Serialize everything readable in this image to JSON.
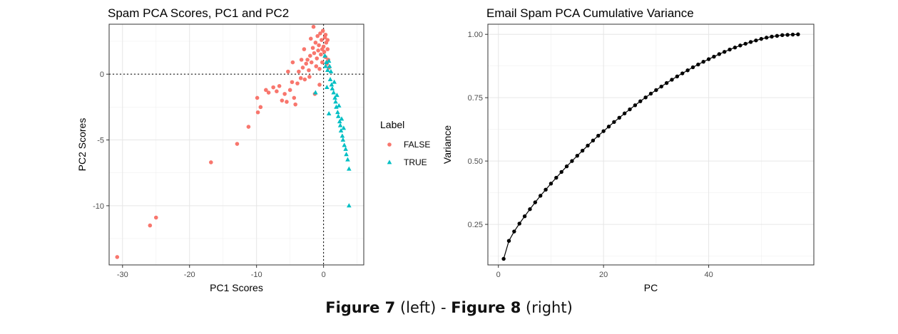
{
  "chart_data": [
    {
      "type": "scatter",
      "title": "Spam PCA Scores, PC1 and PC2",
      "xlabel": "PC1 Scores",
      "ylabel": "PC2 Scores",
      "xlim": [
        -32,
        6
      ],
      "ylim": [
        -14.5,
        3.8
      ],
      "xticks": [
        -30,
        -20,
        -10,
        0
      ],
      "xtick_labels": [
        "-30",
        "-20",
        "-10",
        "0"
      ],
      "yticks": [
        0,
        -5,
        -10
      ],
      "ytick_labels": [
        "0",
        "-5",
        "-10"
      ],
      "grid": true,
      "reference_lines": {
        "x": 0,
        "y": 0,
        "style": "dotted"
      },
      "legend": {
        "title": "Label",
        "position": "right",
        "entries": [
          {
            "label": "FALSE",
            "color": "#F8766D",
            "shape": "circle"
          },
          {
            "label": "TRUE",
            "color": "#00BFC4",
            "shape": "triangle"
          }
        ]
      },
      "series": [
        {
          "name": "FALSE",
          "color": "#F8766D",
          "shape": "circle",
          "points": [
            [
              -30.8,
              -13.9
            ],
            [
              -25.9,
              -11.5
            ],
            [
              -25.0,
              -10.9
            ],
            [
              -16.8,
              -6.7
            ],
            [
              -12.9,
              -5.3
            ],
            [
              -11.2,
              -4.0
            ],
            [
              -9.8,
              -2.9
            ],
            [
              -9.4,
              -2.5
            ],
            [
              -9.9,
              -1.8
            ],
            [
              -8.6,
              -1.2
            ],
            [
              -8.2,
              -1.4
            ],
            [
              -7.5,
              -1.0
            ],
            [
              -7.0,
              -1.3
            ],
            [
              -6.6,
              -0.9
            ],
            [
              -6.2,
              -2.0
            ],
            [
              -5.8,
              -1.5
            ],
            [
              -5.5,
              -2.1
            ],
            [
              -5.0,
              -1.2
            ],
            [
              -4.7,
              -0.6
            ],
            [
              -4.4,
              -1.8
            ],
            [
              -4.2,
              -2.3
            ],
            [
              -3.9,
              -0.7
            ],
            [
              -3.7,
              0.2
            ],
            [
              -3.4,
              -0.3
            ],
            [
              -3.1,
              0.5
            ],
            [
              -2.8,
              -0.4
            ],
            [
              -2.6,
              0.8
            ],
            [
              -2.4,
              1.1
            ],
            [
              -2.2,
              0.3
            ],
            [
              -2.0,
              1.4
            ],
            [
              -1.8,
              0.9
            ],
            [
              -1.6,
              2.0
            ],
            [
              -1.4,
              1.6
            ],
            [
              -1.2,
              2.4
            ],
            [
              -1.1,
              0.6
            ],
            [
              -1.0,
              1.2
            ],
            [
              -0.9,
              2.9
            ],
            [
              -0.8,
              1.8
            ],
            [
              -0.7,
              2.2
            ],
            [
              -0.6,
              0.4
            ],
            [
              -0.5,
              3.1
            ],
            [
              -0.4,
              1.5
            ],
            [
              -0.3,
              2.6
            ],
            [
              -0.2,
              0.9
            ],
            [
              -0.1,
              3.3
            ],
            [
              0.0,
              2.1
            ],
            [
              0.1,
              1.7
            ],
            [
              0.2,
              2.8
            ],
            [
              0.3,
              1.3
            ],
            [
              0.4,
              2.4
            ],
            [
              0.5,
              0.8
            ],
            [
              0.6,
              1.9
            ],
            [
              0.7,
              1.1
            ],
            [
              0.8,
              0.5
            ],
            [
              -1.5,
              3.6
            ],
            [
              -1.9,
              2.7
            ],
            [
              -2.9,
              1.9
            ],
            [
              -3.3,
              1.1
            ],
            [
              -4.6,
              0.9
            ],
            [
              -5.3,
              0.2
            ],
            [
              -1.3,
              -1.5
            ],
            [
              -0.6,
              -0.8
            ],
            [
              -2.1,
              -0.2
            ],
            [
              0.3,
              3.0
            ],
            [
              0.6,
              2.6
            ],
            [
              -0.2,
              1.9
            ]
          ]
        },
        {
          "name": "TRUE",
          "color": "#00BFC4",
          "shape": "triangle",
          "points": [
            [
              0.2,
              1.4
            ],
            [
              0.4,
              0.9
            ],
            [
              0.6,
              0.3
            ],
            [
              0.8,
              1.0
            ],
            [
              0.9,
              0.6
            ],
            [
              1.0,
              -0.4
            ],
            [
              1.2,
              -0.8
            ],
            [
              1.3,
              -1.1
            ],
            [
              1.5,
              -1.4
            ],
            [
              1.6,
              -0.6
            ],
            [
              1.7,
              -1.8
            ],
            [
              1.8,
              -2.1
            ],
            [
              1.9,
              -2.5
            ],
            [
              2.0,
              -1.6
            ],
            [
              2.1,
              -2.9
            ],
            [
              2.2,
              -3.2
            ],
            [
              2.3,
              -2.4
            ],
            [
              2.4,
              -3.6
            ],
            [
              2.5,
              -3.9
            ],
            [
              2.6,
              -4.3
            ],
            [
              2.7,
              -3.4
            ],
            [
              2.8,
              -4.7
            ],
            [
              2.9,
              -5.0
            ],
            [
              3.0,
              -4.1
            ],
            [
              3.1,
              -5.4
            ],
            [
              3.3,
              -5.7
            ],
            [
              3.4,
              -6.1
            ],
            [
              3.6,
              -6.5
            ],
            [
              3.8,
              -7.2
            ],
            [
              3.8,
              -10.0
            ],
            [
              -1.2,
              -1.4
            ],
            [
              0.8,
              -3.0
            ],
            [
              0.5,
              -1.0
            ],
            [
              1.1,
              0.2
            ],
            [
              0.3,
              0.6
            ]
          ]
        }
      ]
    },
    {
      "type": "line",
      "title": "Email Spam PCA Cumulative Variance",
      "xlabel": "PC",
      "ylabel": "Variance",
      "xlim": [
        -2,
        60
      ],
      "ylim": [
        0.09,
        1.04
      ],
      "xticks": [
        0,
        20,
        40
      ],
      "xtick_labels": [
        "0",
        "20",
        "40"
      ],
      "yticks": [
        0.25,
        0.5,
        0.75,
        1.0
      ],
      "ytick_labels": [
        "0.25",
        "0.50",
        "0.75",
        "1.00"
      ],
      "grid": true,
      "series": [
        {
          "color": "#000000",
          "x": [
            1,
            2,
            3,
            4,
            5,
            6,
            7,
            8,
            9,
            10,
            11,
            12,
            13,
            14,
            15,
            16,
            17,
            18,
            19,
            20,
            21,
            22,
            23,
            24,
            25,
            26,
            27,
            28,
            29,
            30,
            31,
            32,
            33,
            34,
            35,
            36,
            37,
            38,
            39,
            40,
            41,
            42,
            43,
            44,
            45,
            46,
            47,
            48,
            49,
            50,
            51,
            52,
            53,
            54,
            55,
            56,
            57
          ],
          "y": [
            0.114,
            0.185,
            0.222,
            0.253,
            0.282,
            0.31,
            0.337,
            0.363,
            0.387,
            0.411,
            0.434,
            0.457,
            0.479,
            0.5,
            0.521,
            0.541,
            0.561,
            0.581,
            0.6,
            0.618,
            0.636,
            0.654,
            0.671,
            0.688,
            0.704,
            0.72,
            0.736,
            0.751,
            0.766,
            0.78,
            0.794,
            0.808,
            0.821,
            0.834,
            0.846,
            0.858,
            0.87,
            0.881,
            0.892,
            0.902,
            0.912,
            0.922,
            0.931,
            0.94,
            0.948,
            0.956,
            0.963,
            0.97,
            0.976,
            0.982,
            0.987,
            0.991,
            0.994,
            0.997,
            0.998,
            0.999,
            1.0
          ]
        }
      ]
    }
  ],
  "caption": {
    "fig7_bold": "Figure 7",
    "fig7_rest": " (left) - ",
    "fig8_bold": "Figure 8",
    "fig8_rest": " (right)"
  }
}
